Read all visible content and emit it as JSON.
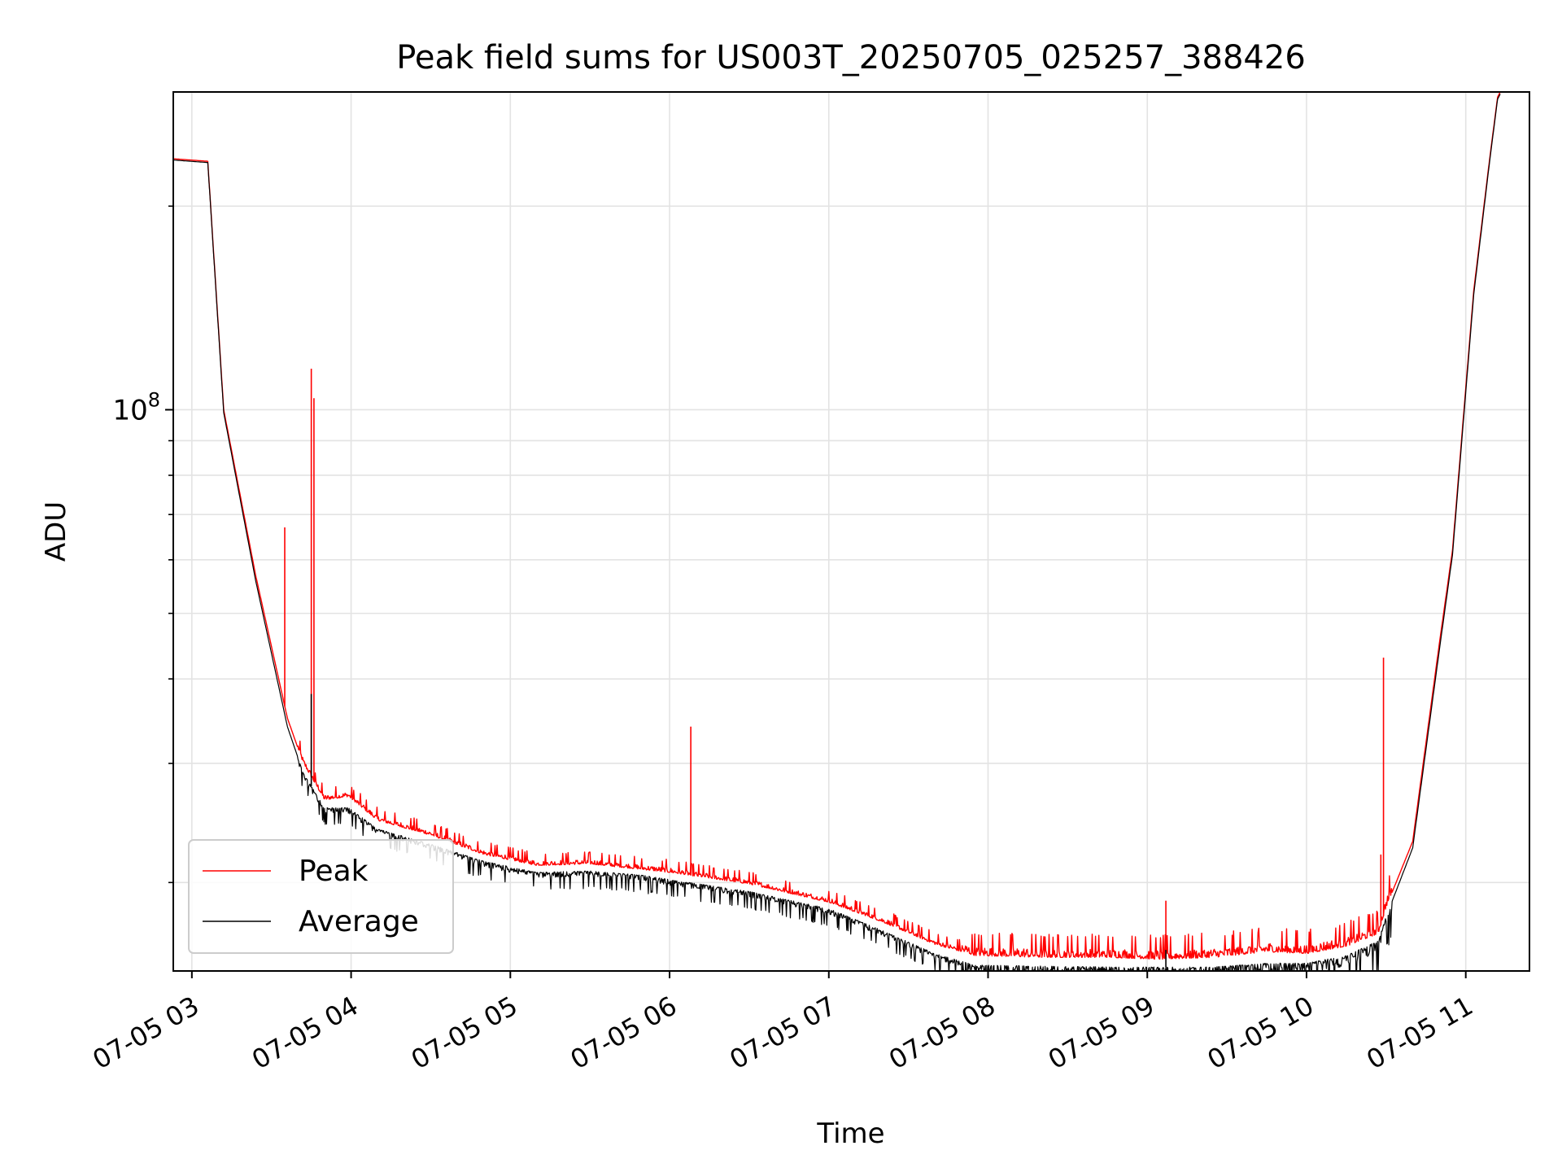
{
  "chart_data": {
    "type": "line",
    "title": "Peak field sums for US003T_20250705_025257_388426",
    "xlabel": "Time",
    "ylabel": "ADU",
    "y_scale": "log",
    "grid": true,
    "legend_position": "lower-left",
    "x_ticks": [
      "07-05 03",
      "07-05 04",
      "07-05 05",
      "07-05 06",
      "07-05 07",
      "07-05 08",
      "07-05 09",
      "07-05 10",
      "07-05 11"
    ],
    "y_major_tick": {
      "value": 100000000,
      "base": "10",
      "exponent": "8"
    },
    "x_range": [
      "2025-07-05 02:53",
      "2025-07-05 11:24"
    ],
    "y_range": [
      14800000,
      295000000
    ],
    "series": [
      {
        "name": "Peak",
        "color": "#ff0000",
        "points": [
          [
            "2025-07-05 02:53",
            235000000
          ],
          [
            "2025-07-05 03:06",
            233000000
          ],
          [
            "2025-07-05 03:12",
            100000000
          ],
          [
            "2025-07-05 03:24",
            57000000
          ],
          [
            "2025-07-05 03:36",
            35000000
          ],
          [
            "2025-07-05 03:42",
            30000000
          ],
          [
            "2025-07-05 03:50",
            26500000
          ],
          [
            "2025-07-05 03:59",
            26800000
          ],
          [
            "2025-07-05 04:10",
            24700000
          ],
          [
            "2025-07-05 04:30",
            23500000
          ],
          [
            "2025-07-05 04:50",
            22000000
          ],
          [
            "2025-07-05 05:10",
            21200000
          ],
          [
            "2025-07-05 05:30",
            21300000
          ],
          [
            "2025-07-05 05:50",
            20900000
          ],
          [
            "2025-07-05 06:00",
            20700000
          ],
          [
            "2025-07-05 06:30",
            19900000
          ],
          [
            "2025-07-05 07:00",
            18700000
          ],
          [
            "2025-07-05 07:20",
            17500000
          ],
          [
            "2025-07-05 07:40",
            16200000
          ],
          [
            "2025-07-05 07:55",
            15600000
          ],
          [
            "2025-07-05 08:20",
            15500000
          ],
          [
            "2025-07-05 08:45",
            15500000
          ],
          [
            "2025-07-05 09:05",
            15400000
          ],
          [
            "2025-07-05 09:25",
            15500000
          ],
          [
            "2025-07-05 09:45",
            15800000
          ],
          [
            "2025-07-05 10:00",
            15700000
          ],
          [
            "2025-07-05 10:15",
            16100000
          ],
          [
            "2025-07-05 10:27",
            16800000
          ],
          [
            "2025-07-05 10:30",
            18400000
          ],
          [
            "2025-07-05 10:40",
            23000000
          ],
          [
            "2025-07-05 10:50",
            45000000
          ],
          [
            "2025-07-05 10:55",
            62000000
          ],
          [
            "2025-07-05 11:03",
            150000000
          ],
          [
            "2025-07-05 11:09",
            235000000
          ],
          [
            "2025-07-05 11:12",
            290000000
          ],
          [
            "2025-07-05 11:13",
            295000000
          ]
        ],
        "spikes": [
          [
            "2025-07-05 03:35",
            67000000
          ],
          [
            "2025-07-05 03:45",
            115000000
          ],
          [
            "2025-07-05 03:46",
            104000000
          ],
          [
            "2025-07-05 06:08",
            34000000
          ],
          [
            "2025-07-05 09:07",
            18800000
          ],
          [
            "2025-07-05 10:28",
            22000000
          ],
          [
            "2025-07-05 10:29",
            43000000
          ]
        ]
      },
      {
        "name": "Average",
        "color": "#000000",
        "points": [
          [
            "2025-07-05 02:53",
            234000000
          ],
          [
            "2025-07-05 03:06",
            232000000
          ],
          [
            "2025-07-05 03:12",
            99000000
          ],
          [
            "2025-07-05 03:24",
            56000000
          ],
          [
            "2025-07-05 03:36",
            34000000
          ],
          [
            "2025-07-05 03:42",
            29000000
          ],
          [
            "2025-07-05 03:50",
            25800000
          ],
          [
            "2025-07-05 03:59",
            25800000
          ],
          [
            "2025-07-05 04:10",
            24000000
          ],
          [
            "2025-07-05 04:30",
            22800000
          ],
          [
            "2025-07-05 04:50",
            21500000
          ],
          [
            "2025-07-05 05:10",
            20700000
          ],
          [
            "2025-07-05 05:30",
            20800000
          ],
          [
            "2025-07-05 05:50",
            20500000
          ],
          [
            "2025-07-05 06:00",
            20200000
          ],
          [
            "2025-07-05 06:30",
            19400000
          ],
          [
            "2025-07-05 07:00",
            18300000
          ],
          [
            "2025-07-05 07:20",
            17000000
          ],
          [
            "2025-07-05 07:40",
            15700000
          ],
          [
            "2025-07-05 07:55",
            15100000
          ],
          [
            "2025-07-05 08:20",
            15050000
          ],
          [
            "2025-07-05 08:45",
            15000000
          ],
          [
            "2025-07-05 09:05",
            15000000
          ],
          [
            "2025-07-05 09:25",
            15000000
          ],
          [
            "2025-07-05 09:45",
            15200000
          ],
          [
            "2025-07-05 10:00",
            15200000
          ],
          [
            "2025-07-05 10:15",
            15600000
          ],
          [
            "2025-07-05 10:27",
            16400000
          ],
          [
            "2025-07-05 10:30",
            17800000
          ],
          [
            "2025-07-05 10:40",
            22500000
          ],
          [
            "2025-07-05 10:50",
            44000000
          ],
          [
            "2025-07-05 10:55",
            61000000
          ],
          [
            "2025-07-05 11:03",
            148000000
          ],
          [
            "2025-07-05 11:09",
            233000000
          ],
          [
            "2025-07-05 11:12",
            288000000
          ],
          [
            "2025-07-05 11:13",
            293000000
          ]
        ],
        "spikes": [
          [
            "2025-07-05 03:45",
            38000000
          ],
          [
            "2025-07-05 09:07",
            15900000
          ]
        ]
      }
    ]
  }
}
